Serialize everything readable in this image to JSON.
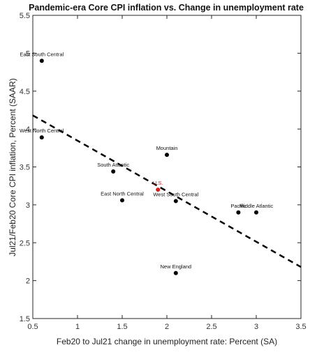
{
  "chart_data": {
    "type": "scatter",
    "title": "Pandemic-era Core CPI inflation vs. Change in unemployment rate",
    "xlabel": "Feb20 to Jul21 change in unemployment rate:  Percent (SA)",
    "ylabel": "Jul21/Feb20 Core CPI inflation, Percent (SAAR)",
    "xlim": [
      0.5,
      3.5
    ],
    "ylim": [
      1.5,
      5.5
    ],
    "xticks": [
      "0.5",
      "1",
      "1.5",
      "2",
      "2.5",
      "3",
      "3.5"
    ],
    "yticks": [
      "1.5",
      "2",
      "2.5",
      "3",
      "3.5",
      "4",
      "4.5",
      "5",
      "5.5"
    ],
    "grid": false,
    "points": [
      {
        "label": "East South Central",
        "x": 0.6,
        "y": 4.9,
        "color": "#000000"
      },
      {
        "label": "West North Central",
        "x": 0.6,
        "y": 3.89,
        "color": "#000000"
      },
      {
        "label": "Mountain",
        "x": 2.0,
        "y": 3.66,
        "color": "#000000"
      },
      {
        "label": "South Atlantic",
        "x": 1.4,
        "y": 3.44,
        "color": "#000000"
      },
      {
        "label": "U.S.",
        "x": 1.9,
        "y": 3.2,
        "color": "#d62020"
      },
      {
        "label": "East North Central",
        "x": 1.5,
        "y": 3.06,
        "color": "#000000"
      },
      {
        "label": "West South Central",
        "x": 2.1,
        "y": 3.05,
        "color": "#000000"
      },
      {
        "label": "Pacific",
        "x": 2.8,
        "y": 2.9,
        "color": "#000000"
      },
      {
        "label": "Middle Atlantic",
        "x": 3.0,
        "y": 2.9,
        "color": "#000000"
      },
      {
        "label": "New England",
        "x": 2.1,
        "y": 2.1,
        "color": "#000000"
      }
    ],
    "trendline": {
      "style": "dashed",
      "color": "#000000",
      "x": [
        0.5,
        3.5
      ],
      "y": [
        4.18,
        2.18
      ]
    }
  }
}
